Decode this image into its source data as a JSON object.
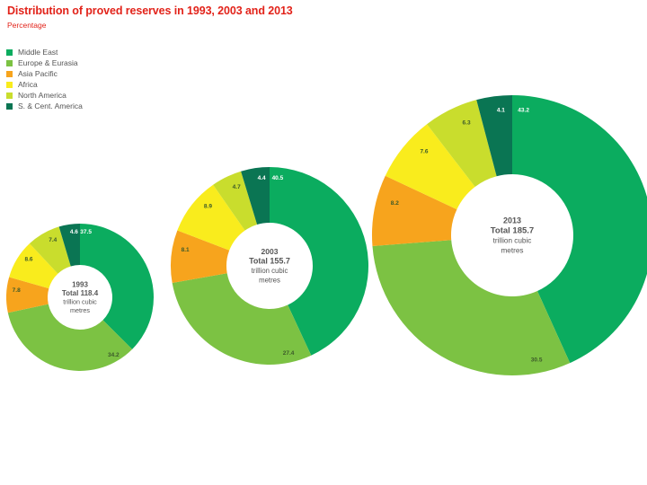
{
  "title": "Distribution of proved reserves in 1993, 2003 and 2013",
  "subtitle": "Percentage",
  "chart_data": {
    "type": "pie",
    "variant": "donut",
    "title": "Distribution of proved reserves in 1993, 2003 and 2013",
    "subtitle": "Percentage",
    "legend_position": "top-left",
    "categories": [
      "Middle East",
      "Europe & Eurasia",
      "Asia Pacific",
      "Africa",
      "North America",
      "S. & Cent. America"
    ],
    "colors": [
      "#0bac5f",
      "#7cc243",
      "#f7a41d",
      "#f9ec1d",
      "#c9dd2d",
      "#0a7553"
    ],
    "series": [
      {
        "name": "1993",
        "total_label": "Total 118.4",
        "unit_label": "trillion cubic metres",
        "values": [
          37.5,
          34.2,
          7.8,
          8.6,
          7.4,
          4.6
        ]
      },
      {
        "name": "2003",
        "total_label": "Total 155.7",
        "unit_label": "trillion cubic metres",
        "values": [
          40.5,
          27.4,
          8.1,
          8.9,
          4.7,
          4.4
        ]
      },
      {
        "name": "2013",
        "total_label": "Total 185.7",
        "unit_label": "trillion cubic metres",
        "values": [
          43.2,
          30.5,
          8.2,
          7.6,
          6.3,
          4.1
        ]
      }
    ]
  }
}
